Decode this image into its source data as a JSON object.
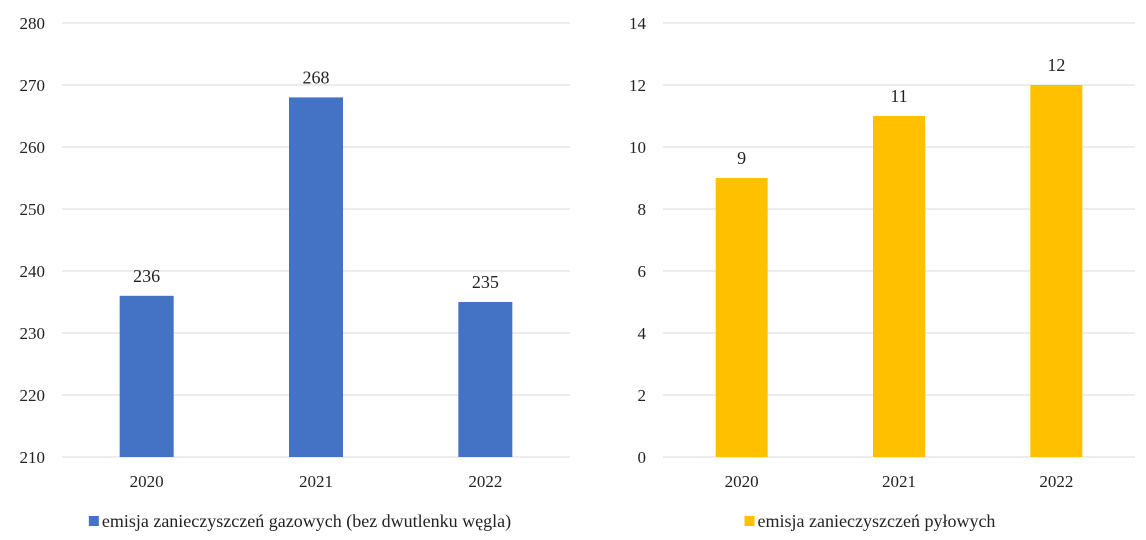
{
  "chart_data": [
    {
      "type": "bar",
      "categories": [
        "2020",
        "2021",
        "2022"
      ],
      "series": [
        {
          "name": "emisja zanieczyszczeń gazowych (bez dwutlenku węgla)",
          "values": [
            236,
            268,
            235
          ],
          "color": "#4472c4"
        }
      ],
      "ylim": [
        210,
        280
      ],
      "yticks": [
        210,
        220,
        230,
        240,
        250,
        260,
        270,
        280
      ],
      "data_labels": true,
      "grid": true,
      "legend_position": "bottom"
    },
    {
      "type": "bar",
      "categories": [
        "2020",
        "2021",
        "2022"
      ],
      "series": [
        {
          "name": "emisja zanieczyszczeń pyłowych",
          "values": [
            9,
            11,
            12
          ],
          "color": "#ffc000"
        }
      ],
      "ylim": [
        0,
        14
      ],
      "yticks": [
        0,
        2,
        4,
        6,
        8,
        10,
        12,
        14
      ],
      "data_labels": true,
      "grid": true,
      "legend_position": "bottom"
    }
  ]
}
